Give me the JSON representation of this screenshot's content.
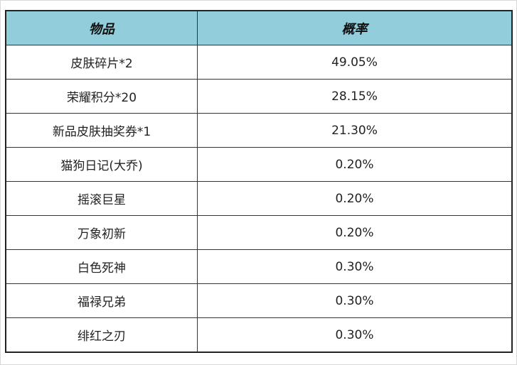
{
  "table": {
    "header_color": "#92cddc",
    "columns": [
      "物品",
      "概率"
    ],
    "rows": [
      [
        "皮肤碎片*2",
        "49.05%"
      ],
      [
        "荣耀积分*20",
        "28.15%"
      ],
      [
        "新品皮肤抽奖券*1",
        "21.30%"
      ],
      [
        "猫狗日记(大乔)",
        "0.20%"
      ],
      [
        "摇滚巨星",
        "0.20%"
      ],
      [
        "万象初新",
        "0.20%"
      ],
      [
        "白色死神",
        "0.30%"
      ],
      [
        "福禄兄弟",
        "0.30%"
      ],
      [
        "绯红之刃",
        "0.30%"
      ]
    ]
  }
}
